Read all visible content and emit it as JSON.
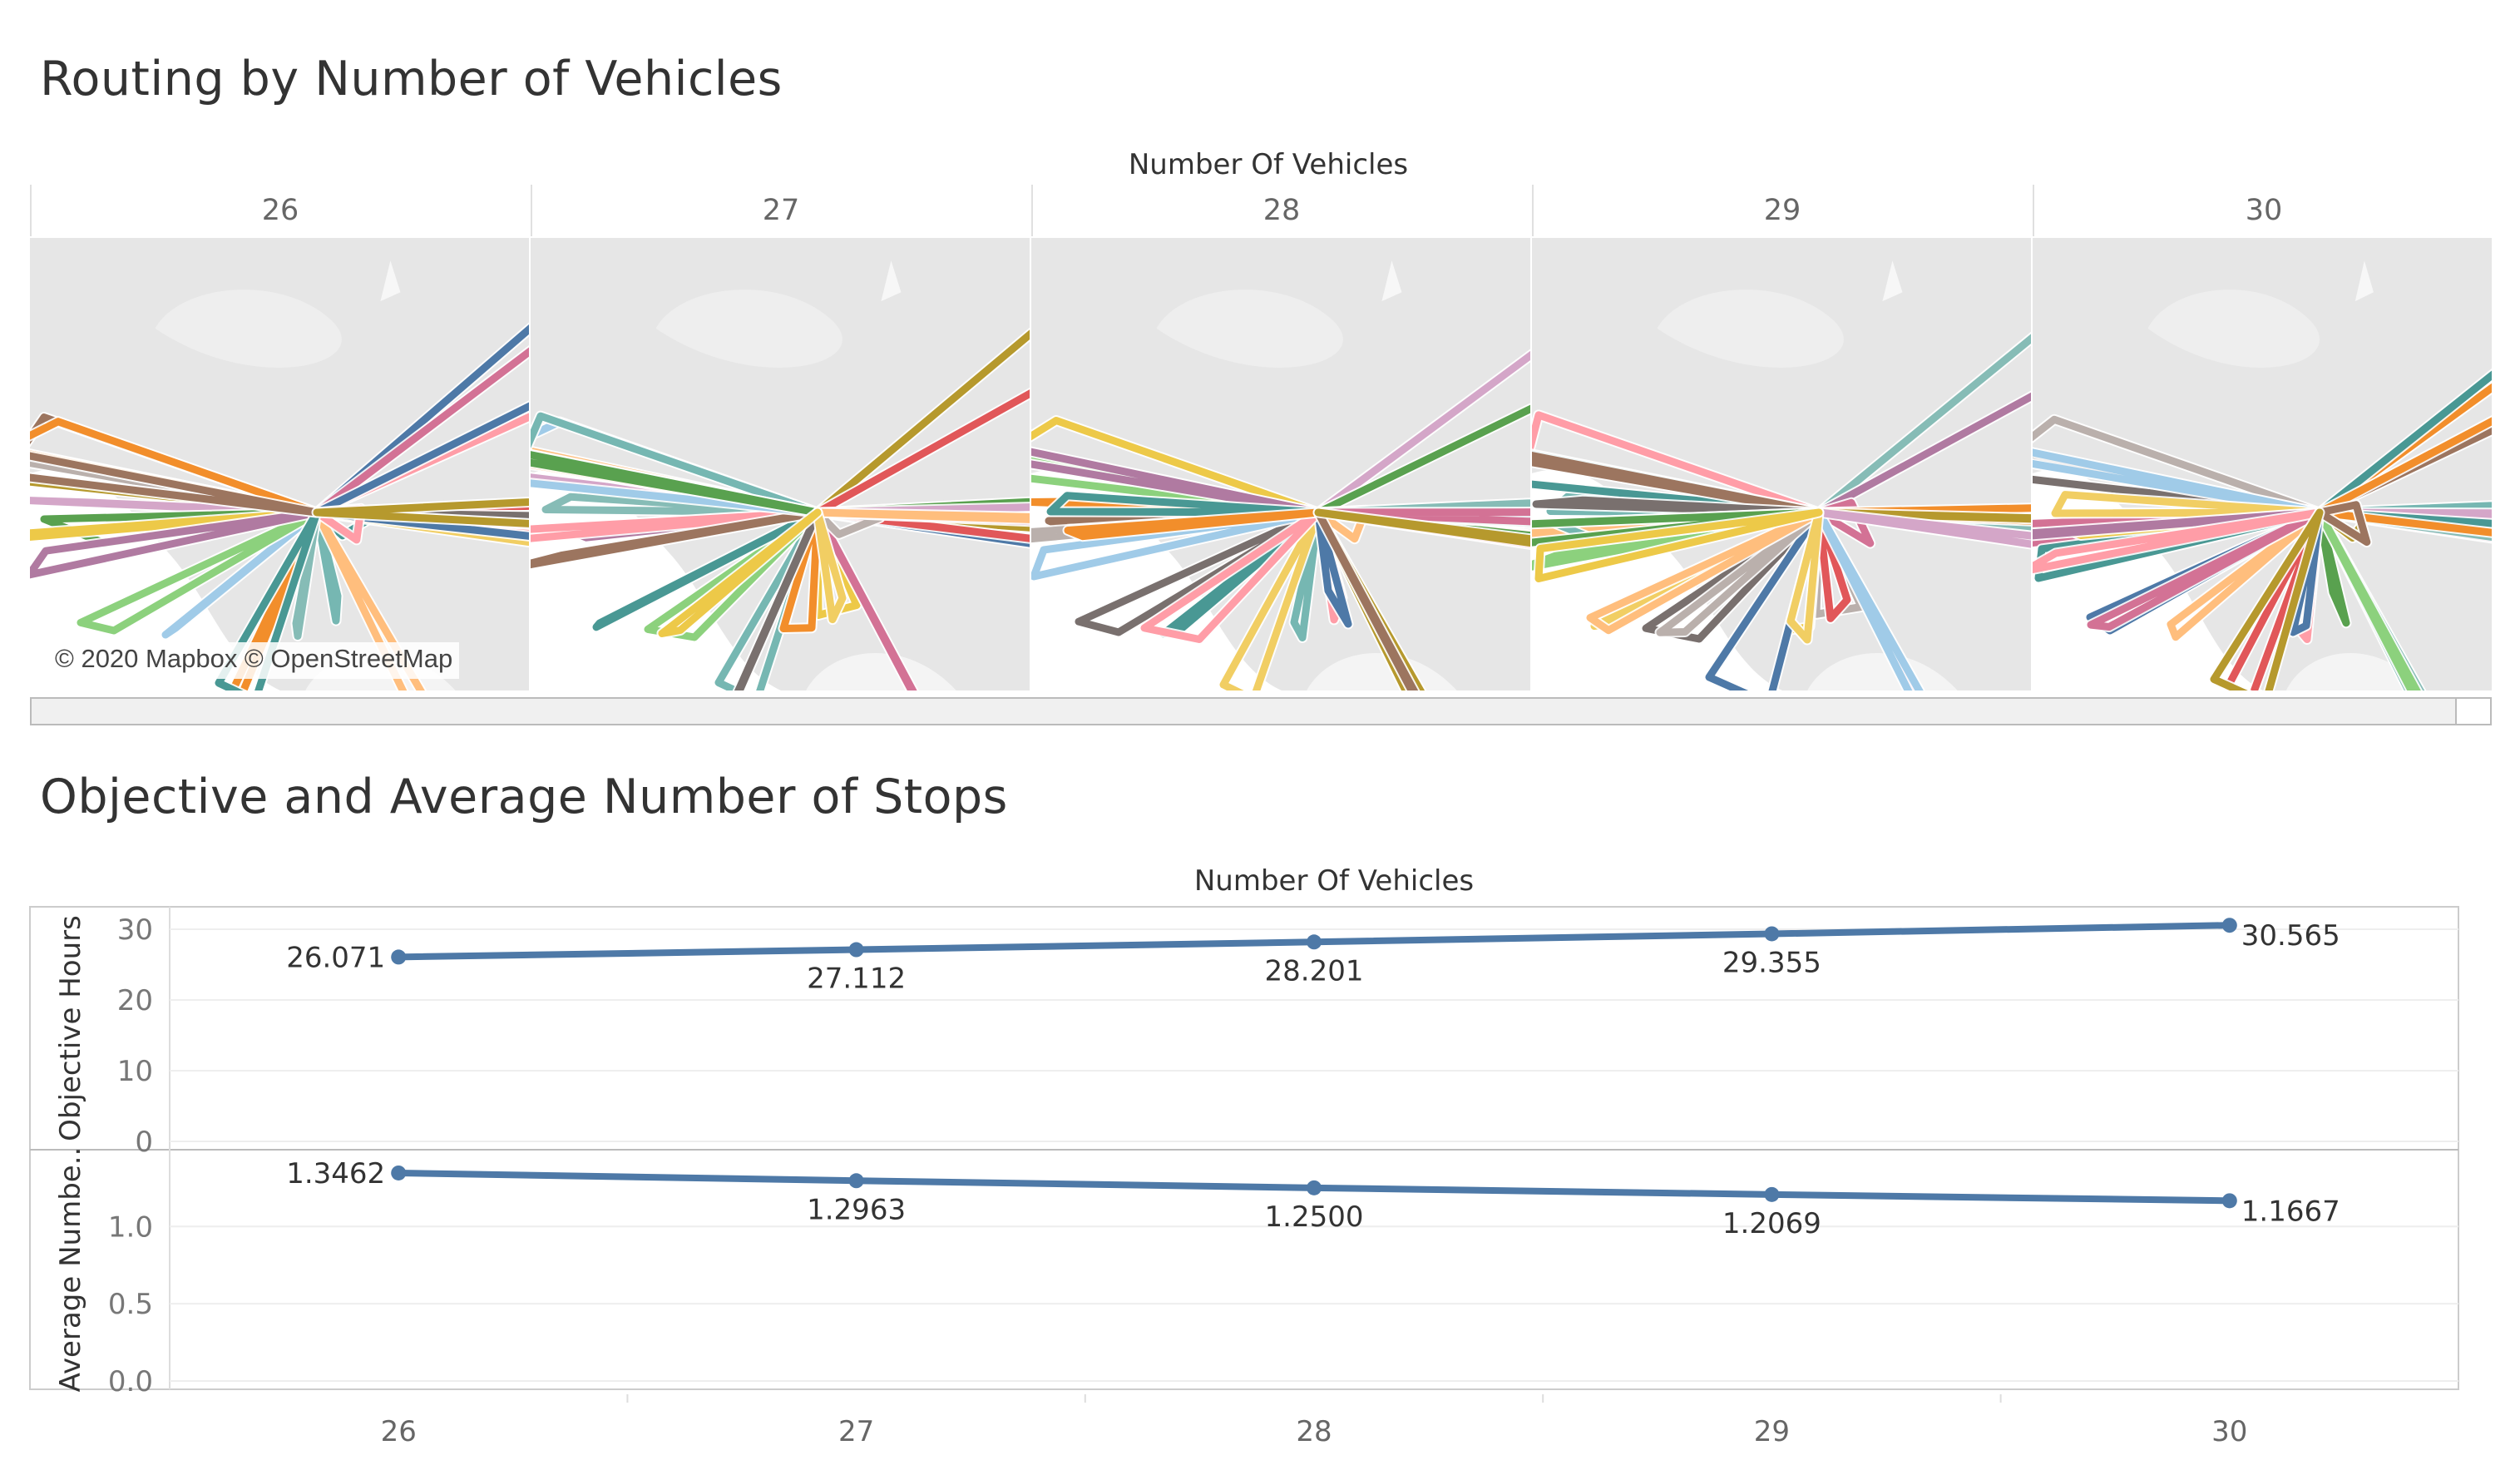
{
  "dashboard": {
    "title_routes": "Routing by Number of Vehicles",
    "title_objective": "Objective and Average Number of Stops"
  },
  "maps": {
    "header": "Number Of Vehicles",
    "columns": [
      "26",
      "27",
      "28",
      "29",
      "30"
    ],
    "attribution": "© 2020 Mapbox © OpenStreetMap"
  },
  "chart_data": {
    "type": "line",
    "xlabel_top": "Number Of Vehicles",
    "categories": [
      "26",
      "27",
      "28",
      "29",
      "30"
    ],
    "panels": [
      {
        "ylabel": "Objective Hours",
        "ylim": [
          0,
          32
        ],
        "yticks": [
          "0",
          "10",
          "20",
          "30"
        ],
        "ytick_values": [
          0,
          10,
          20,
          30
        ],
        "values": [
          26.071,
          27.112,
          28.201,
          29.355,
          30.565
        ],
        "labels": [
          "26.071",
          "27.112",
          "28.201",
          "29.355",
          "30.565"
        ],
        "color": "#4e79a7"
      },
      {
        "ylabel": "Average Numbe..",
        "ylim": [
          0,
          1.4
        ],
        "yticks": [
          "0.0",
          "0.5",
          "1.0"
        ],
        "ytick_values": [
          0,
          0.5,
          1.0
        ],
        "values": [
          1.3462,
          1.2963,
          1.25,
          1.2069,
          1.1667
        ],
        "labels": [
          "1.3462",
          "1.2963",
          "1.2500",
          "1.2069",
          "1.1667"
        ],
        "color": "#4e79a7"
      }
    ],
    "grid": true
  }
}
